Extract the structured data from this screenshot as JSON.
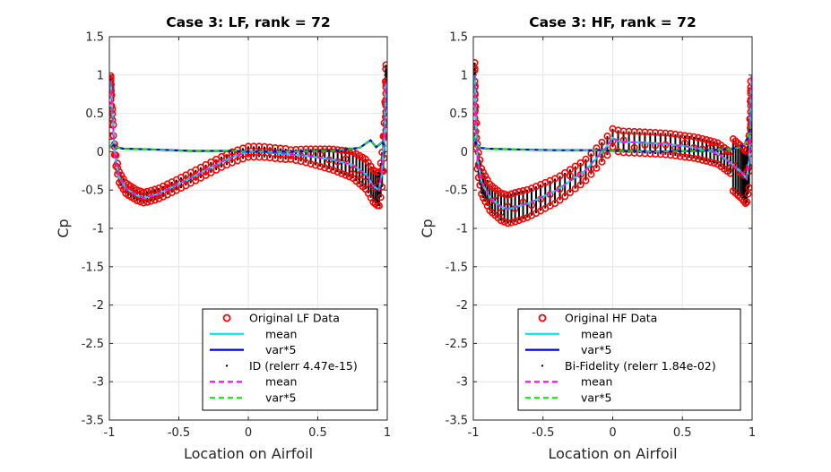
{
  "chart_data": [
    {
      "type": "line",
      "title": "Case 3: LF, rank = 72",
      "xlabel": "Location on Airfoil",
      "ylabel": "Cp",
      "xlim": [
        -1,
        1
      ],
      "ylim": [
        -3.5,
        1.5
      ],
      "xticks": [
        "-1",
        "-0.5",
        "0",
        "0.5",
        "1"
      ],
      "yticks": [
        "1.5",
        "1",
        "0.5",
        "0",
        "-0.5",
        "-1",
        "-1.5",
        "-2",
        "-2.5",
        "-3",
        "-3.5"
      ],
      "grid": true,
      "legend_position": "bottom-right",
      "legend": [
        "Original LF Data",
        "mean",
        "var*5",
        "ID (relerr 4.47e-15)",
        "mean",
        "var*5"
      ],
      "series": [
        {
          "name": "mean",
          "color": "#00e5ee",
          "points": [
            [
              -0.99,
              0.92
            ],
            [
              -0.98,
              0.55
            ],
            [
              -0.96,
              -0.05
            ],
            [
              -0.93,
              -0.33
            ],
            [
              -0.88,
              -0.48
            ],
            [
              -0.8,
              -0.57
            ],
            [
              -0.75,
              -0.6
            ],
            [
              -0.65,
              -0.55
            ],
            [
              -0.5,
              -0.42
            ],
            [
              -0.35,
              -0.28
            ],
            [
              -0.2,
              -0.14
            ],
            [
              -0.1,
              -0.06
            ],
            [
              0,
              0
            ],
            [
              0.1,
              0
            ],
            [
              0.2,
              -0.02
            ],
            [
              0.4,
              -0.05
            ],
            [
              0.6,
              -0.1
            ],
            [
              0.75,
              -0.17
            ],
            [
              0.85,
              -0.3
            ],
            [
              0.9,
              -0.45
            ],
            [
              0.94,
              -0.5
            ],
            [
              0.96,
              -0.3
            ],
            [
              0.98,
              0.2
            ],
            [
              0.99,
              0.9
            ]
          ]
        },
        {
          "name": "var*5",
          "color": "#0000dd",
          "points": [
            [
              -1,
              0.05
            ],
            [
              -0.98,
              0.1
            ],
            [
              -0.95,
              0.06
            ],
            [
              -0.9,
              0.04
            ],
            [
              -0.7,
              0.03
            ],
            [
              -0.4,
              0.01
            ],
            [
              -0.1,
              0.01
            ],
            [
              0,
              0
            ],
            [
              0.3,
              0
            ],
            [
              0.6,
              0.01
            ],
            [
              0.8,
              0.05
            ],
            [
              0.88,
              0.15
            ],
            [
              0.92,
              0.06
            ],
            [
              0.96,
              0.12
            ],
            [
              0.99,
              0.07
            ]
          ]
        }
      ]
    },
    {
      "type": "line",
      "title": "Case 3: HF, rank = 72",
      "xlabel": "Location on Airfoil",
      "ylabel": "Cp",
      "xlim": [
        -1,
        1
      ],
      "ylim": [
        -3.5,
        1.5
      ],
      "xticks": [
        "-1",
        "-0.5",
        "0",
        "0.5",
        "1"
      ],
      "yticks": [
        "1.5",
        "1",
        "0.5",
        "0",
        "-0.5",
        "-1",
        "-1.5",
        "-2",
        "-2.5",
        "-3",
        "-3.5"
      ],
      "grid": true,
      "legend_position": "bottom-right",
      "legend": [
        "Original HF Data",
        "mean",
        "var*5",
        "Bi-Fidelity (relerr 1.84e-02)",
        "mean",
        "var*5"
      ],
      "series": [
        {
          "name": "mean",
          "color": "#00e5ee",
          "points": [
            [
              -0.99,
              1.0
            ],
            [
              -0.985,
              0.5
            ],
            [
              -0.97,
              -0.1
            ],
            [
              -0.94,
              -0.4
            ],
            [
              -0.88,
              -0.6
            ],
            [
              -0.8,
              -0.72
            ],
            [
              -0.75,
              -0.75
            ],
            [
              -0.6,
              -0.67
            ],
            [
              -0.4,
              -0.5
            ],
            [
              -0.2,
              -0.25
            ],
            [
              -0.05,
              0.05
            ],
            [
              0,
              0.18
            ],
            [
              0.05,
              0.13
            ],
            [
              0.2,
              0.12
            ],
            [
              0.4,
              0.1
            ],
            [
              0.6,
              0.05
            ],
            [
              0.75,
              -0.02
            ],
            [
              0.85,
              -0.15
            ],
            [
              0.93,
              -0.28
            ],
            [
              0.96,
              -0.35
            ],
            [
              0.98,
              -0.1
            ],
            [
              0.99,
              0.5
            ],
            [
              0.995,
              1.0
            ]
          ]
        },
        {
          "name": "var*5",
          "color": "#0000dd",
          "points": [
            [
              -1,
              0.2
            ],
            [
              -0.98,
              0.1
            ],
            [
              -0.95,
              0.05
            ],
            [
              -0.9,
              0.04
            ],
            [
              -0.7,
              0.03
            ],
            [
              -0.4,
              0.02
            ],
            [
              -0.1,
              0.02
            ],
            [
              0,
              0.01
            ],
            [
              0.3,
              0
            ],
            [
              0.6,
              0.01
            ],
            [
              0.8,
              0.03
            ],
            [
              0.9,
              0.05
            ],
            [
              0.95,
              0.1
            ],
            [
              0.98,
              0.25
            ],
            [
              0.99,
              0.35
            ]
          ]
        }
      ]
    }
  ]
}
